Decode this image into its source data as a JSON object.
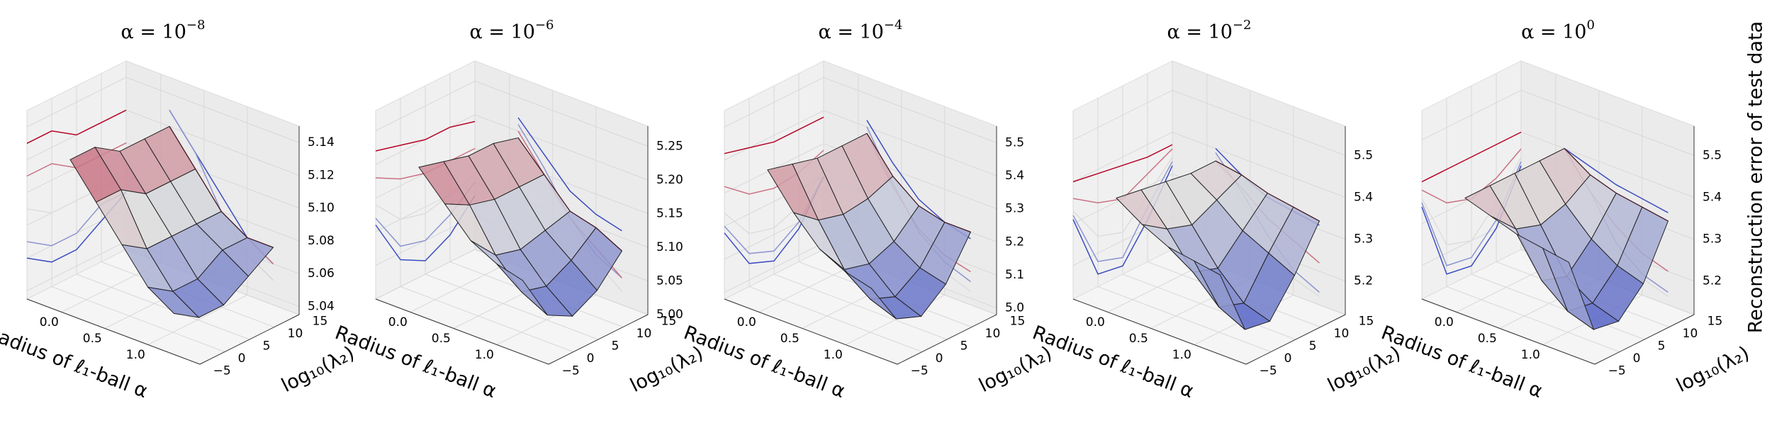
{
  "chart_data": [
    {
      "type": "surface",
      "colormap": "coolwarm",
      "title": {
        "base": "α = 10",
        "exp": "−8"
      },
      "x_label": "Radius of ℓ₁-ball α",
      "y_label": "log₁₀(λ₂)",
      "xlim": [
        -0.4,
        1.6
      ],
      "xticks": [
        {
          "value": 0,
          "label": "0.0"
        },
        0.5,
        {
          "value": 1,
          "label": "1.0"
        }
      ],
      "ylim": [
        -5,
        15
      ],
      "yticks": [
        {
          "value": -5,
          "label": "−5"
        },
        0,
        5,
        10,
        15
      ],
      "zlim": [
        5.035,
        5.15
      ],
      "zticks": [
        5.04,
        5.06,
        5.08,
        {
          "value": 5.1,
          "label": "5.10"
        },
        5.12,
        5.14
      ],
      "x": [
        0.1,
        0.4,
        0.7,
        1.0,
        1.3
      ],
      "y": [
        -5,
        0,
        5,
        10,
        15
      ],
      "z": [
        [
          5.13,
          5.13,
          5.12,
          5.12,
          5.12
        ],
        [
          5.11,
          5.11,
          5.1,
          5.1,
          5.1
        ],
        [
          5.09,
          5.08,
          5.08,
          5.08,
          5.08
        ],
        [
          5.07,
          5.06,
          5.06,
          5.07,
          5.07
        ],
        [
          5.06,
          5.05,
          5.05,
          5.06,
          5.07
        ]
      ]
    },
    {
      "type": "surface",
      "colormap": "coolwarm",
      "title": {
        "base": "α = 10",
        "exp": "−6"
      },
      "x_label": "Radius of ℓ₁-ball α",
      "y_label": "log₁₀(λ₂)",
      "xlim": [
        -0.4,
        1.6
      ],
      "xticks": [
        {
          "value": 0,
          "label": "0.0"
        },
        0.5,
        {
          "value": 1,
          "label": "1.0"
        }
      ],
      "ylim": [
        -5,
        15
      ],
      "yticks": [
        {
          "value": -5,
          "label": "−5"
        },
        0,
        5,
        10,
        15
      ],
      "zlim": [
        5.0,
        5.28
      ],
      "zticks": [
        {
          "value": 5,
          "label": "5.00"
        },
        5.05,
        {
          "value": 5.1,
          "label": "5.10"
        },
        5.15,
        {
          "value": 5.2,
          "label": "5.20"
        },
        5.25
      ],
      "x": [
        0.1,
        0.4,
        0.7,
        1.0,
        1.3
      ],
      "y": [
        -5,
        0,
        5,
        10,
        15
      ],
      "z": [
        [
          5.22,
          5.21,
          5.2,
          5.2,
          5.19
        ],
        [
          5.18,
          5.16,
          5.15,
          5.15,
          5.15
        ],
        [
          5.14,
          5.1,
          5.09,
          5.1,
          5.11
        ],
        [
          5.12,
          5.06,
          5.05,
          5.07,
          5.1
        ],
        [
          5.11,
          5.04,
          5.02,
          5.04,
          5.08
        ]
      ]
    },
    {
      "type": "surface",
      "colormap": "coolwarm",
      "title": {
        "base": "α = 10",
        "exp": "−4"
      },
      "x_label": "Radius of ℓ₁-ball α",
      "y_label": "log₁₀(λ₂)",
      "xlim": [
        -0.4,
        1.6
      ],
      "xticks": [
        {
          "value": 0,
          "label": "0.0"
        },
        0.5,
        {
          "value": 1,
          "label": "1.0"
        }
      ],
      "ylim": [
        -5,
        15
      ],
      "yticks": [
        {
          "value": -5,
          "label": "−5"
        },
        0,
        5,
        10,
        15
      ],
      "zlim": [
        4.98,
        5.55
      ],
      "zticks": [
        {
          "value": 5,
          "label": "5.0"
        },
        5.1,
        5.2,
        5.3,
        5.4,
        5.5
      ],
      "x": [
        0.1,
        0.4,
        0.7,
        1.0,
        1.3
      ],
      "y": [
        -5,
        0,
        5,
        10,
        15
      ],
      "z": [
        [
          5.42,
          5.4,
          5.38,
          5.38,
          5.38
        ],
        [
          5.32,
          5.26,
          5.24,
          5.25,
          5.28
        ],
        [
          5.24,
          5.14,
          5.12,
          5.15,
          5.22
        ],
        [
          5.2,
          5.08,
          5.05,
          5.1,
          5.2
        ],
        [
          5.18,
          5.05,
          5.02,
          5.08,
          5.2
        ]
      ]
    },
    {
      "type": "surface",
      "colormap": "coolwarm",
      "title": {
        "base": "α = 10",
        "exp": "−2"
      },
      "x_label": "Radius of ℓ₁-ball α",
      "y_label": "log₁₀(λ₂)",
      "xlim": [
        -0.4,
        1.6
      ],
      "xticks": [
        {
          "value": 0,
          "label": "0.0"
        },
        0.5,
        {
          "value": 1,
          "label": "1.0"
        }
      ],
      "ylim": [
        -5,
        15
      ],
      "yticks": [
        {
          "value": -5,
          "label": "−5"
        },
        0,
        5,
        10,
        15
      ],
      "zlim": [
        5.12,
        5.57
      ],
      "zticks": [
        5.2,
        5.3,
        5.4,
        5.5
      ],
      "x": [
        0.1,
        0.4,
        0.7,
        1.0,
        1.3
      ],
      "y": [
        -5,
        0,
        5,
        10,
        15
      ],
      "z": [
        [
          5.4,
          5.39,
          5.38,
          5.37,
          5.37
        ],
        [
          5.36,
          5.32,
          5.3,
          5.33,
          5.36
        ],
        [
          5.33,
          5.24,
          5.22,
          5.28,
          5.34
        ],
        [
          5.32,
          5.18,
          5.16,
          5.25,
          5.33
        ],
        [
          5.31,
          5.15,
          5.14,
          5.22,
          5.32
        ]
      ]
    },
    {
      "type": "surface",
      "colormap": "coolwarm",
      "title": {
        "base": "α = 10",
        "exp": "0"
      },
      "x_label": "Radius of ℓ₁-ball α",
      "y_label": "log₁₀(λ₂)",
      "z_label": "Reconstruction error of test data",
      "xlim": [
        -0.4,
        1.6
      ],
      "xticks": [
        {
          "value": 0,
          "label": "0.0"
        },
        0.5,
        {
          "value": 1,
          "label": "1.0"
        }
      ],
      "ylim": [
        -5,
        15
      ],
      "yticks": [
        {
          "value": -5,
          "label": "−5"
        },
        0,
        5,
        10,
        15
      ],
      "zlim": [
        5.12,
        5.57
      ],
      "zticks": [
        5.2,
        5.3,
        5.4,
        5.5
      ],
      "x": [
        0.1,
        0.4,
        0.7,
        1.0,
        1.3
      ],
      "y": [
        -5,
        0,
        5,
        10,
        15
      ],
      "z": [
        [
          5.4,
          5.4,
          5.4,
          5.4,
          5.4
        ],
        [
          5.38,
          5.32,
          5.3,
          5.32,
          5.36
        ],
        [
          5.36,
          5.22,
          5.2,
          5.26,
          5.34
        ],
        [
          5.35,
          5.17,
          5.16,
          5.22,
          5.33
        ],
        [
          5.34,
          5.15,
          5.14,
          5.2,
          5.32
        ]
      ]
    }
  ]
}
